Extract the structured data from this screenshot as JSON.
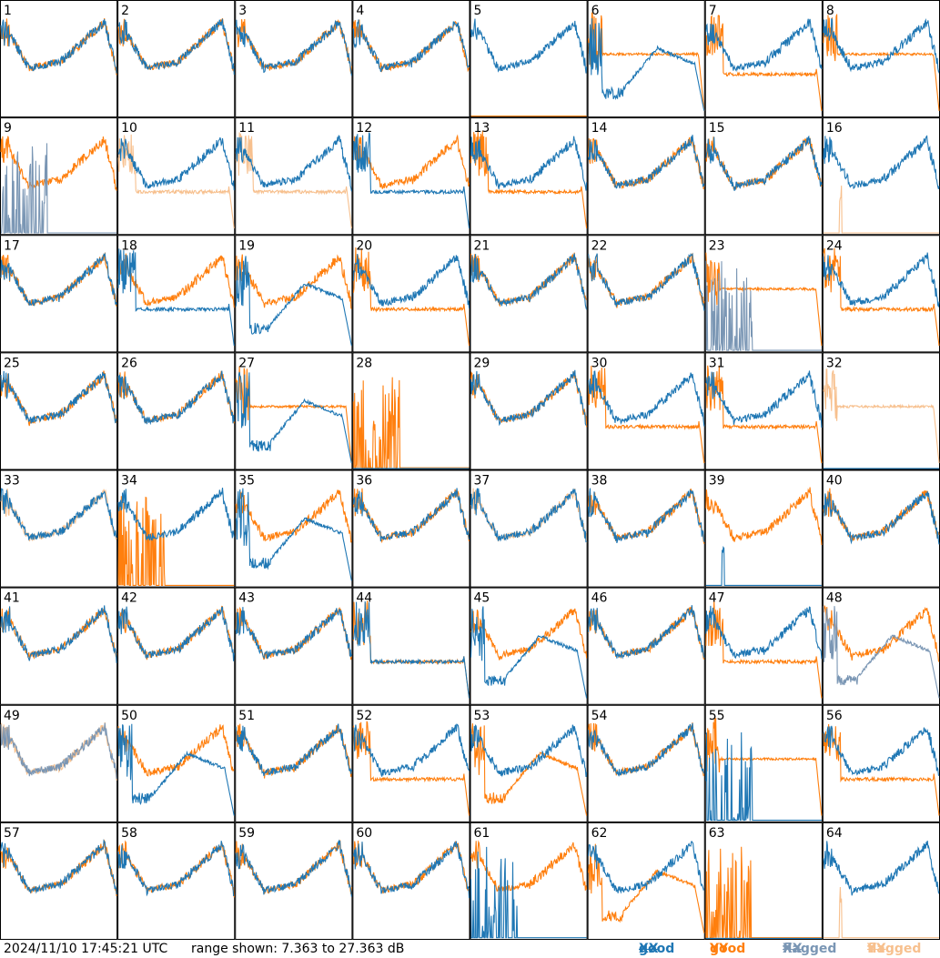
{
  "footer": {
    "timestamp": "2024/11/10 17:45:21 UTC",
    "range_text": "range shown: 7.363 to 27.363 dB"
  },
  "legend": [
    {
      "key": "good_xx",
      "prefix": "good",
      "pol": "XX",
      "color": "#1f77b4"
    },
    {
      "key": "good_yy",
      "prefix": "good",
      "pol": "YY",
      "color": "#ff7f0e"
    },
    {
      "key": "flagged_xx",
      "prefix": "flagged",
      "pol": "XX",
      "color": "#7a96b4"
    },
    {
      "key": "flagged_yy",
      "prefix": "flagged",
      "pol": "YY",
      "color": "#f7c08e"
    }
  ],
  "chart_data": {
    "type": "line",
    "grid": "8x8 small multiples",
    "ylim_db": [
      7.363,
      27.363
    ],
    "colors": {
      "good_xx": "#1f77b4",
      "good_yy": "#ff7f0e",
      "flagged_xx": "#7a96b4",
      "flagged_yy": "#f7c08e"
    },
    "panels": [
      {
        "label": "1",
        "xx": "good",
        "yy": "good",
        "yy_shape": "lowdip",
        "xx_shape": "normal",
        "extra": "xx_low_right"
      },
      {
        "label": "2",
        "xx": "good",
        "yy": "good"
      },
      {
        "label": "3",
        "xx": "good",
        "yy": "good"
      },
      {
        "label": "4",
        "xx": "good",
        "yy": "good"
      },
      {
        "label": "5",
        "xx": "good",
        "yy": "dead_spike"
      },
      {
        "label": "6",
        "xx": "good_dip",
        "yy": "good_flat"
      },
      {
        "label": "7",
        "xx": "good",
        "yy": "good_lowflat"
      },
      {
        "label": "8",
        "xx": "good",
        "yy": "good_flat"
      },
      {
        "label": "9",
        "xx": "flagged_spikes",
        "yy": "good"
      },
      {
        "label": "10",
        "xx": "good",
        "yy": "flagged_lowflat"
      },
      {
        "label": "11",
        "xx": "good",
        "yy": "flagged_lowflat"
      },
      {
        "label": "12",
        "xx": "good_lowflat",
        "yy": "good"
      },
      {
        "label": "13",
        "xx": "good",
        "yy": "good_lowflat"
      },
      {
        "label": "14",
        "xx": "good",
        "yy": "good"
      },
      {
        "label": "15",
        "xx": "good",
        "yy": "good"
      },
      {
        "label": "16",
        "xx": "good",
        "yy": "flagged_spike"
      },
      {
        "label": "17",
        "xx": "good",
        "yy": "good"
      },
      {
        "label": "18",
        "xx": "good_lowflat",
        "yy": "good"
      },
      {
        "label": "19",
        "xx": "good_dip",
        "yy": "good"
      },
      {
        "label": "20",
        "xx": "good",
        "yy": "good_lowflat"
      },
      {
        "label": "21",
        "xx": "good",
        "yy": "good"
      },
      {
        "label": "22",
        "xx": "good",
        "yy": "good"
      },
      {
        "label": "23",
        "xx": "flagged_spikes",
        "yy": "good_flat"
      },
      {
        "label": "24",
        "xx": "good",
        "yy": "good_lowflat"
      },
      {
        "label": "25",
        "xx": "good",
        "yy": "good"
      },
      {
        "label": "26",
        "xx": "good",
        "yy": "good"
      },
      {
        "label": "27",
        "xx": "good_dip",
        "yy": "good_flat"
      },
      {
        "label": "28",
        "xx": "dead",
        "yy": "good_spikes"
      },
      {
        "label": "29",
        "xx": "good",
        "yy": "good"
      },
      {
        "label": "30",
        "xx": "good",
        "yy": "good_lowflat"
      },
      {
        "label": "31",
        "xx": "good",
        "yy": "good_lowflat"
      },
      {
        "label": "32",
        "xx": "dead",
        "yy": "flagged_flat"
      },
      {
        "label": "33",
        "xx": "good",
        "yy": "flagged"
      },
      {
        "label": "34",
        "xx": "good",
        "yy": "good_spikes"
      },
      {
        "label": "35",
        "xx": "good_dip",
        "yy": "good"
      },
      {
        "label": "36",
        "xx": "good",
        "yy": "good"
      },
      {
        "label": "37",
        "xx": "good",
        "yy": "flagged"
      },
      {
        "label": "38",
        "xx": "good",
        "yy": "good"
      },
      {
        "label": "39",
        "xx": "good_spike",
        "yy": "good"
      },
      {
        "label": "40",
        "xx": "good",
        "yy": "good"
      },
      {
        "label": "41",
        "xx": "good",
        "yy": "good"
      },
      {
        "label": "42",
        "xx": "good",
        "yy": "good"
      },
      {
        "label": "43",
        "xx": "good",
        "yy": "good"
      },
      {
        "label": "44",
        "xx": "good_lowflat",
        "yy": "good_lowflat"
      },
      {
        "label": "45",
        "xx": "good_dip",
        "yy": "good"
      },
      {
        "label": "46",
        "xx": "good",
        "yy": "good"
      },
      {
        "label": "47",
        "xx": "good",
        "yy": "good_lowflat"
      },
      {
        "label": "48",
        "xx": "flagged_dip",
        "yy": "good"
      },
      {
        "label": "49",
        "xx": "flagged",
        "yy": "flagged"
      },
      {
        "label": "50",
        "xx": "good_dip",
        "yy": "good"
      },
      {
        "label": "51",
        "xx": "good",
        "yy": "good"
      },
      {
        "label": "52",
        "xx": "good",
        "yy": "good_lowflat"
      },
      {
        "label": "53",
        "xx": "good",
        "yy": "good_dip"
      },
      {
        "label": "54",
        "xx": "good",
        "yy": "good"
      },
      {
        "label": "55",
        "xx": "good_spikes",
        "yy": "good_flat"
      },
      {
        "label": "56",
        "xx": "good",
        "yy": "good_lowflat"
      },
      {
        "label": "57",
        "xx": "good",
        "yy": "good"
      },
      {
        "label": "58",
        "xx": "good",
        "yy": "good"
      },
      {
        "label": "59",
        "xx": "good",
        "yy": "good"
      },
      {
        "label": "60",
        "xx": "good",
        "yy": "good"
      },
      {
        "label": "61",
        "xx": "good_spikes",
        "yy": "good"
      },
      {
        "label": "62",
        "xx": "good",
        "yy": "good_dip"
      },
      {
        "label": "63",
        "xx": "dead",
        "yy": "good_spikes"
      },
      {
        "label": "64",
        "xx": "good",
        "yy": "flagged_spike"
      }
    ]
  }
}
